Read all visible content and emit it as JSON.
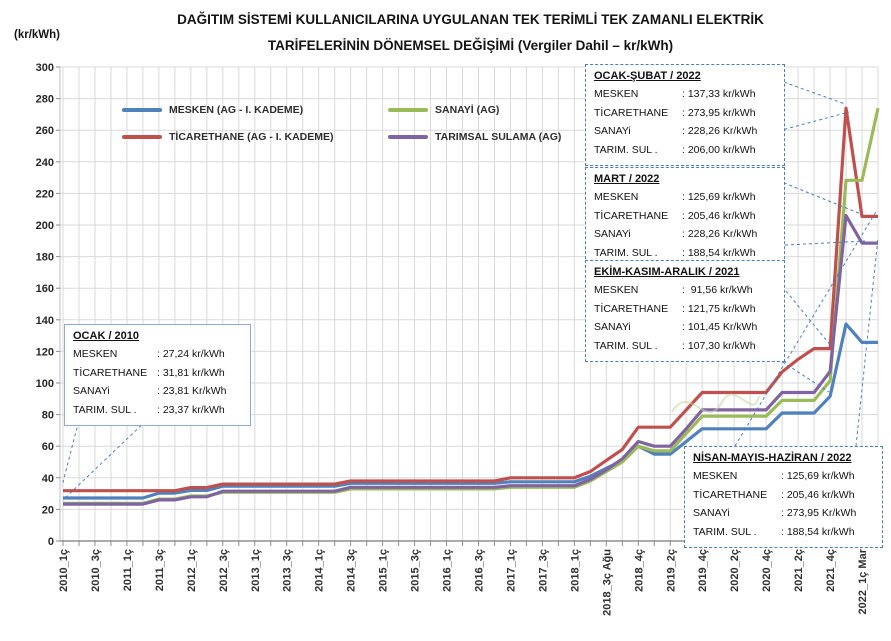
{
  "title": {
    "line1": "DAĞITIM SİSTEMİ KULLANICILARINA UYGULANAN TEK TERİMLİ TEK ZAMANLI ELEKTRİK",
    "line2": "TARİFELERİNİN DÖNEMSEL DEĞİŞİMİ  (Vergiler Dahil – kr/kWh)"
  },
  "y_axis": {
    "unit": "(kr/kWh)",
    "min": 0,
    "max": 300,
    "step": 20
  },
  "chart_data": {
    "type": "line",
    "title": "DAĞITIM SİSTEMİ KULLANICILARINA UYGULANAN TEK TERİMLİ TEK ZAMANLI ELEKTRİK TARİFELERİNİN DÖNEMSEL DEĞİŞİMİ (Vergiler Dahil – kr/kWh)",
    "ylabel": "(kr/kWh)",
    "ylim": [
      0,
      300
    ],
    "ytick_step": 20,
    "grid": true,
    "legend_position": "top-inside",
    "x_tick_labels": [
      "2010_1ç",
      "2010_3ç",
      "2011_1ç",
      "2011_3ç",
      "2012_1ç",
      "2012_3ç",
      "2013_1ç",
      "2013_3ç",
      "2014_1ç",
      "2014_3ç",
      "2015_1ç",
      "2015_3ç",
      "2016_1ç",
      "2016_3ç",
      "2017_1ç",
      "2017_3ç",
      "2018_1ç",
      "2018_3ç Ağu",
      "2018_4ç",
      "2019_2ç",
      "2019_4ç",
      "2020_2ç",
      "2020_4ç",
      "2021_2ç",
      "2021_4ç",
      "2022_1ç Mar"
    ],
    "points_per_tick": 2,
    "series": [
      {
        "name": "MESKEN (AG - I. KADEME)",
        "color": "#4f81bd",
        "values": [
          27.24,
          27.24,
          27.24,
          27.24,
          27.24,
          27.24,
          30.3,
          30.3,
          32.0,
          32.0,
          34.7,
          34.7,
          34.7,
          34.7,
          34.7,
          34.7,
          34.7,
          34.7,
          36.5,
          36.5,
          36.5,
          36.5,
          36.5,
          36.5,
          36.5,
          36.5,
          36.5,
          36.5,
          37.5,
          37.5,
          37.5,
          37.5,
          37.5,
          41.0,
          46.0,
          51.0,
          60.0,
          55.0,
          55.0,
          63.0,
          71.0,
          71.0,
          71.0,
          71.0,
          71.0,
          81.0,
          81.0,
          81.0,
          91.56,
          137.33,
          125.69,
          125.69
        ]
      },
      {
        "name": "TİCARETHANE (AG - I. KADEME)",
        "color": "#c0504d",
        "values": [
          31.81,
          31.81,
          31.81,
          31.81,
          31.81,
          31.81,
          31.81,
          31.81,
          33.8,
          33.8,
          36.0,
          36.0,
          36.0,
          36.0,
          36.0,
          36.0,
          36.0,
          36.0,
          38.0,
          38.0,
          38.0,
          38.0,
          38.0,
          38.0,
          38.0,
          38.0,
          38.0,
          38.0,
          40.0,
          40.0,
          40.0,
          40.0,
          40.0,
          44.0,
          51.0,
          58.0,
          72.0,
          72.0,
          72.0,
          83.0,
          94.0,
          94.0,
          94.0,
          94.0,
          94.0,
          107.0,
          115.0,
          121.75,
          121.75,
          273.95,
          205.46,
          205.46
        ]
      },
      {
        "name": "SANAYİ (AG)",
        "color": "#9bbb59",
        "values": [
          23.81,
          23.81,
          23.81,
          23.81,
          23.81,
          23.81,
          26.5,
          26.5,
          28.5,
          28.5,
          30.8,
          30.8,
          30.8,
          30.8,
          30.8,
          30.8,
          30.8,
          30.8,
          33.0,
          33.0,
          33.0,
          33.0,
          33.0,
          33.0,
          33.0,
          33.0,
          33.0,
          33.0,
          34.0,
          34.0,
          34.0,
          34.0,
          34.0,
          38.0,
          44.0,
          50.0,
          60.0,
          57.0,
          57.0,
          68.0,
          79.0,
          79.0,
          79.0,
          79.0,
          79.0,
          89.0,
          89.0,
          89.0,
          101.45,
          228.26,
          228.26,
          273.95
        ]
      },
      {
        "name": "TARIMSAL SULAMA (AG)",
        "color": "#8064a2",
        "values": [
          23.37,
          23.37,
          23.37,
          23.37,
          23.37,
          23.37,
          26.0,
          26.0,
          28.0,
          28.0,
          31.5,
          31.5,
          31.5,
          31.5,
          31.5,
          31.5,
          31.5,
          31.5,
          34.0,
          34.0,
          34.0,
          34.0,
          34.0,
          34.0,
          34.0,
          34.0,
          34.0,
          34.0,
          35.0,
          35.0,
          35.0,
          35.0,
          35.0,
          39.0,
          45.0,
          52.0,
          63.0,
          60.0,
          60.0,
          71.0,
          83.0,
          83.0,
          83.0,
          83.0,
          83.0,
          94.0,
          94.0,
          94.0,
          107.3,
          206.0,
          188.54,
          188.54
        ]
      }
    ]
  },
  "callouts": [
    {
      "title": "OCAK-ŞUBAT / 2022",
      "rows": [
        [
          "MESKEN",
          ": 137,33 kr/kWh"
        ],
        [
          "TİCARETHANE",
          ": 273,95 kr/kWh"
        ],
        [
          "SANAYi",
          ": 228,26 Kr/kWh"
        ],
        [
          "TARIM. SUL .",
          ": 206,00 kr/kWh"
        ]
      ]
    },
    {
      "title": "MART / 2022",
      "rows": [
        [
          "MESKEN",
          ": 125,69 kr/kWh"
        ],
        [
          "TİCARETHANE",
          ": 205,46 kr/kWh"
        ],
        [
          "SANAYi",
          ": 228,26 Kr/kWh"
        ],
        [
          "TARIM. SUL .",
          ": 188,54 kr/kWh"
        ]
      ]
    },
    {
      "title": "EKİM-KASIM-ARALIK / 2021",
      "rows": [
        [
          "MESKEN",
          ":  91,56 kr/kWh"
        ],
        [
          "TİCARETHANE",
          ": 121,75 kr/kWh"
        ],
        [
          "SANAYi",
          ": 101,45 Kr/kWh"
        ],
        [
          "TARIM. SUL .",
          ": 107,30 kr/kWh"
        ]
      ]
    },
    {
      "title": "OCAK / 2010",
      "rows": [
        [
          "MESKEN",
          ": 27,24 kr/kWh"
        ],
        [
          "TİCARETHANE",
          ": 31,81 kr/kWh"
        ],
        [
          "SANAYi",
          ": 23,81 Kr/kWh"
        ],
        [
          "TARIM. SUL .",
          ": 23,37 kr/kWh"
        ]
      ]
    },
    {
      "title": "NİSAN-MAYIS-HAZİRAN / 2022",
      "rows": [
        [
          "MESKEN",
          ": 125,69 kr/kWh"
        ],
        [
          "TİCARETHANE",
          ": 205,46 kr/kWh"
        ],
        [
          "SANAYi",
          ": 273,95 Kr/kWh"
        ],
        [
          "TARIM. SUL .",
          ": 188,54 kr/kWh"
        ]
      ]
    }
  ]
}
